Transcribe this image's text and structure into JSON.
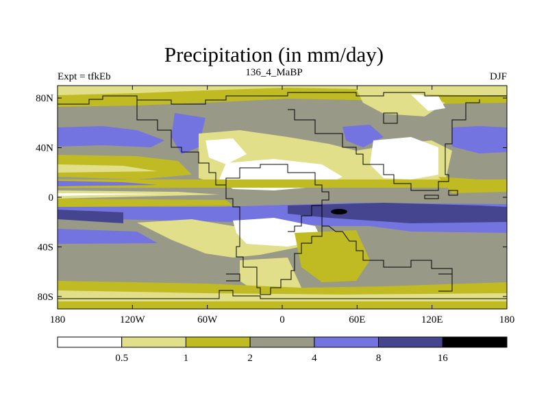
{
  "title": "Precipitation (in mm/day)",
  "left_label": "Expt = tfkEb",
  "center_label": "136_4_MaBP",
  "right_label": "DJF",
  "chart_data": {
    "type": "heatmap",
    "title": "Precipitation (in mm/day)",
    "x_axis": {
      "range": [
        -180,
        180
      ],
      "ticks": [
        -180,
        -120,
        -60,
        0,
        60,
        120,
        180
      ],
      "tick_labels": [
        "180",
        "120W",
        "60W",
        "0",
        "60E",
        "120E",
        "180"
      ]
    },
    "y_axis": {
      "range": [
        -90,
        90
      ],
      "ticks": [
        80,
        40,
        0,
        -40,
        -80
      ],
      "tick_labels": [
        "80N",
        "40N",
        "0",
        "40S",
        "80S"
      ]
    },
    "colorbar": {
      "levels": [
        0.5,
        1,
        2,
        4,
        8,
        16
      ],
      "level_labels": [
        "0.5",
        "1",
        "2",
        "4",
        "8",
        "16"
      ],
      "colors": [
        "#ffffff",
        "#e1df8a",
        "#c0bb22",
        "#999988",
        "#7474e0",
        "#45458f",
        "#000000"
      ]
    }
  }
}
